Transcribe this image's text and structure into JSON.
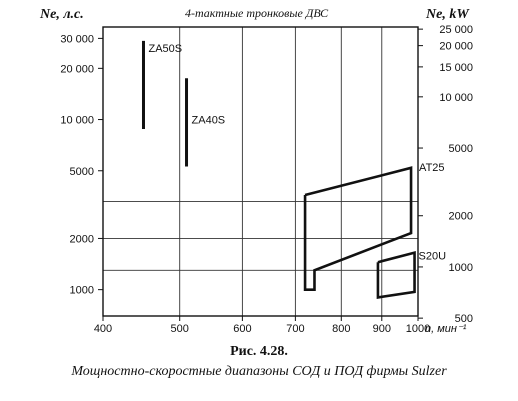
{
  "caption": {
    "number": "Рис. 4.28.",
    "text": "Мощностно-скоростные диапазоны СОД и ПОД фирмы Sulzer"
  },
  "chart_data": {
    "type": "line",
    "title": "4-тактные тронковые ДВС",
    "ylabel_left": "Ne, л.с.",
    "ylabel_right": "Ne, kW",
    "xlabel": "n, мин⁻¹",
    "x_scale": "log",
    "y_scale": "log",
    "xlim": [
      400,
      1000
    ],
    "ylim_left": [
      700,
      35000
    ],
    "x_ticks": [
      400,
      500,
      600,
      700,
      800,
      900,
      1000
    ],
    "x_tick_labels": [
      "400",
      "500",
      "600",
      "700",
      "800",
      "900",
      "1000"
    ],
    "y_ticks_left": [
      1000,
      2000,
      5000,
      10000,
      20000,
      30000
    ],
    "y_tick_labels_left": [
      "1000",
      "2000",
      "5000",
      "10 000",
      "20 000",
      "30 000"
    ],
    "y_ticks_right_kw": [
      500,
      1000,
      2000,
      5000,
      10000,
      15000,
      20000,
      25000
    ],
    "y_tick_labels_right": [
      "500",
      "1000",
      "2000",
      "5000",
      "10 000",
      "15 000",
      "20 000",
      "25 000"
    ],
    "gridlines_y_left": [
      1300,
      2000,
      3300
    ],
    "series": [
      {
        "name": "ZA50S",
        "shape": "vertical-line",
        "x": [
          450,
          450
        ],
        "y": [
          8800,
          29000
        ]
      },
      {
        "name": "ZA40S",
        "shape": "vertical-line",
        "x": [
          510,
          510
        ],
        "y": [
          5300,
          17500
        ]
      },
      {
        "name": "AT25",
        "shape": "polygon",
        "x": [
          720,
          720,
          720,
          740,
          740,
          980,
          980,
          720
        ],
        "y": [
          3600,
          1700,
          1000,
          1000,
          1300,
          2150,
          5200,
          3600
        ]
      },
      {
        "name": "S20U",
        "shape": "polygon",
        "x": [
          890,
          890,
          990,
          990,
          890
        ],
        "y": [
          1450,
          900,
          970,
          1650,
          1450
        ]
      }
    ]
  }
}
